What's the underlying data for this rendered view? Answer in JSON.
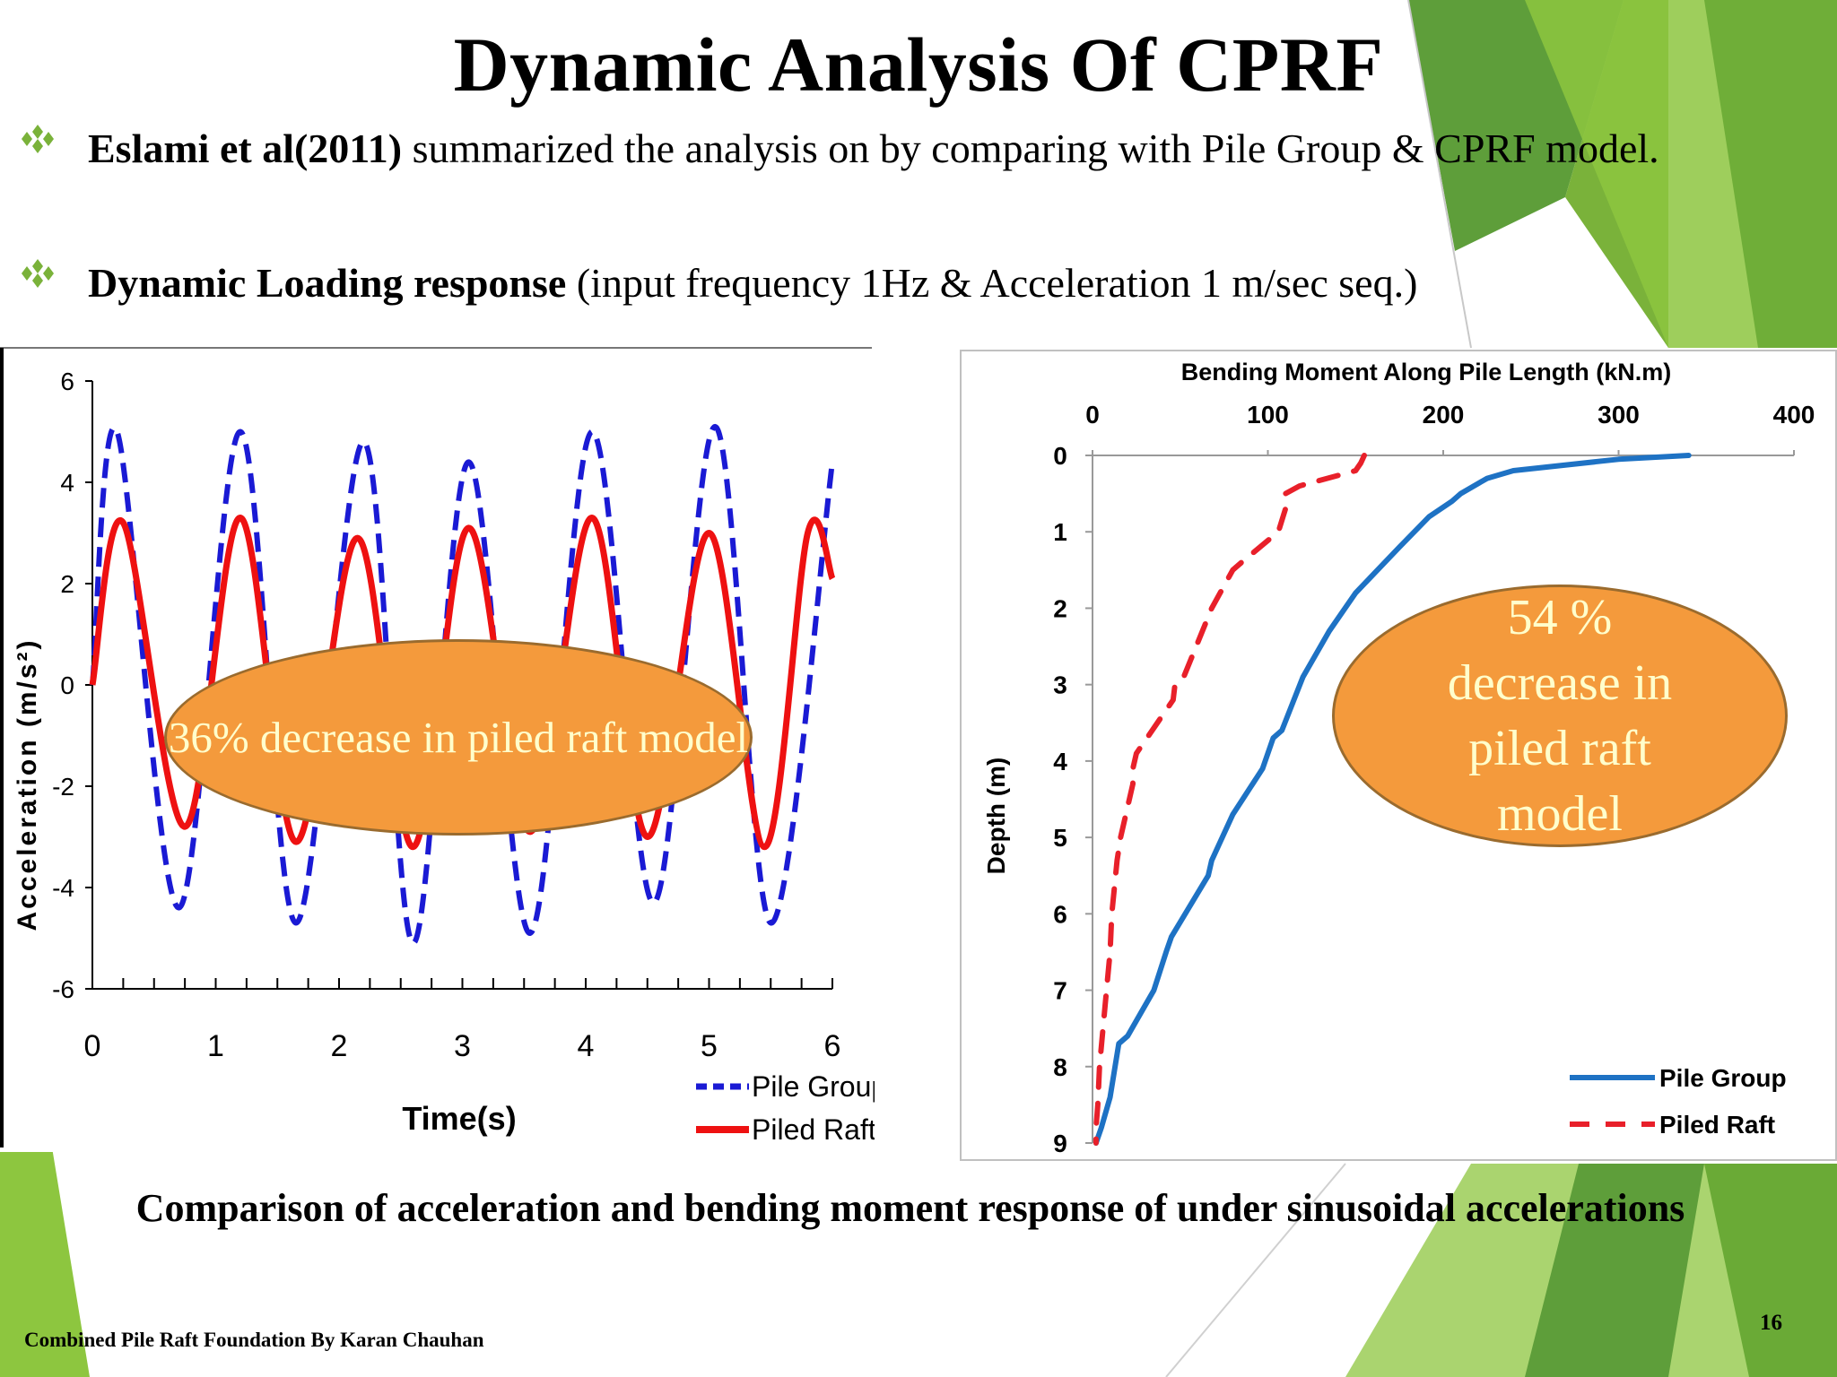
{
  "slide": {
    "title": "Dynamic Analysis Of CPRF",
    "bullets": [
      {
        "bold": "Eslami et al(2011)",
        "text": " summarized the analysis on by comparing with Pile Group & CPRF model."
      },
      {
        "bold": "Dynamic Loading response",
        "text": " (input frequency 1Hz & Acceleration 1 m/sec seq.)"
      }
    ],
    "caption": "Comparison of acceleration and bending moment response of under sinusoidal accelerations",
    "footer": "Combined Pile Raft Foundation By Karan Chauhan",
    "page_number": "16",
    "annotation_left": "36% decrease in piled raft model",
    "annotation_right": "54 %\ndecrease in\npiled raft\nmodel",
    "colors": {
      "accent_green": "#8dc63f",
      "dark_green": "#5a9e3a",
      "annotation_fill": "#f49a3c",
      "annotation_text": "#ffffcc"
    }
  },
  "chart_data": [
    {
      "type": "line",
      "title": "",
      "xlabel": "Time(s)",
      "ylabel": "Acceleration (m/s²)",
      "xlim": [
        0,
        6
      ],
      "ylim": [
        -6,
        6
      ],
      "xticks": [
        "0",
        "1",
        "2",
        "3",
        "4",
        "5",
        "6"
      ],
      "yticks": [
        "6",
        "4",
        "2",
        "0",
        "-2",
        "-4",
        "-6"
      ],
      "series": [
        {
          "name": "Pile Group",
          "color": "#1a1ad4",
          "style": "dashed",
          "x": [
            0,
            0.2,
            0.7,
            1.2,
            1.65,
            2.2,
            2.6,
            3.05,
            3.55,
            4.05,
            4.55,
            5.05,
            5.5,
            6.0
          ],
          "y": [
            0,
            5.0,
            -4.4,
            5.0,
            -4.7,
            4.8,
            -5.1,
            4.4,
            -4.9,
            5.0,
            -4.3,
            5.1,
            -4.7,
            4.4
          ]
        },
        {
          "name": "Piled Raft",
          "color": "#ee1111",
          "style": "solid",
          "x": [
            0,
            0.25,
            0.75,
            1.2,
            1.65,
            2.15,
            2.6,
            3.05,
            3.55,
            4.05,
            4.5,
            5.0,
            5.45,
            5.8,
            6.0
          ],
          "y": [
            0,
            3.2,
            -2.8,
            3.3,
            -3.1,
            2.9,
            -3.2,
            3.1,
            -2.9,
            3.3,
            -3.0,
            3.0,
            -3.2,
            3.0,
            2.1
          ]
        }
      ],
      "legend": "bottom-right"
    },
    {
      "type": "line",
      "title": "Bending Moment Along Pile Length (kN.m)",
      "xlabel": "Bending Moment Along Pile Length (kN.m)",
      "ylabel": "Depth (m)",
      "xlim": [
        0,
        400
      ],
      "ylim": [
        0,
        9
      ],
      "xticks": [
        "0",
        "100",
        "200",
        "300",
        "400"
      ],
      "yticks": [
        "0",
        "1",
        "2",
        "3",
        "4",
        "5",
        "6",
        "7",
        "8",
        "9"
      ],
      "series": [
        {
          "name": "Pile Group",
          "color": "#1e72c4",
          "style": "solid",
          "x": [
            340,
            300,
            240,
            225,
            210,
            205,
            192,
            175,
            150,
            135,
            120,
            108,
            103,
            97,
            80,
            68,
            66,
            45,
            42,
            35,
            20,
            15,
            10,
            5,
            2
          ],
          "y": [
            0,
            0.05,
            0.2,
            0.3,
            0.5,
            0.6,
            0.8,
            1.2,
            1.8,
            2.3,
            2.9,
            3.6,
            3.7,
            4.1,
            4.7,
            5.3,
            5.5,
            6.3,
            6.5,
            7.0,
            7.6,
            7.7,
            8.4,
            8.8,
            9.0
          ]
        },
        {
          "name": "Piled Raft",
          "color": "#e8202a",
          "style": "dashed",
          "x": [
            155,
            153,
            150,
            118,
            110,
            110,
            106,
            85,
            80,
            68,
            52,
            47,
            46,
            25,
            23,
            23,
            16,
            14,
            11,
            10,
            8,
            6,
            4,
            3,
            2,
            2
          ],
          "y": [
            0,
            0.1,
            0.2,
            0.4,
            0.5,
            0.7,
            1.0,
            1.4,
            1.5,
            2.0,
            2.9,
            3.0,
            3.2,
            3.9,
            4.1,
            4.3,
            5.0,
            5.3,
            6.0,
            6.5,
            7.0,
            7.5,
            8.0,
            8.5,
            8.8,
            9.0
          ]
        }
      ],
      "legend": "bottom-right"
    }
  ]
}
